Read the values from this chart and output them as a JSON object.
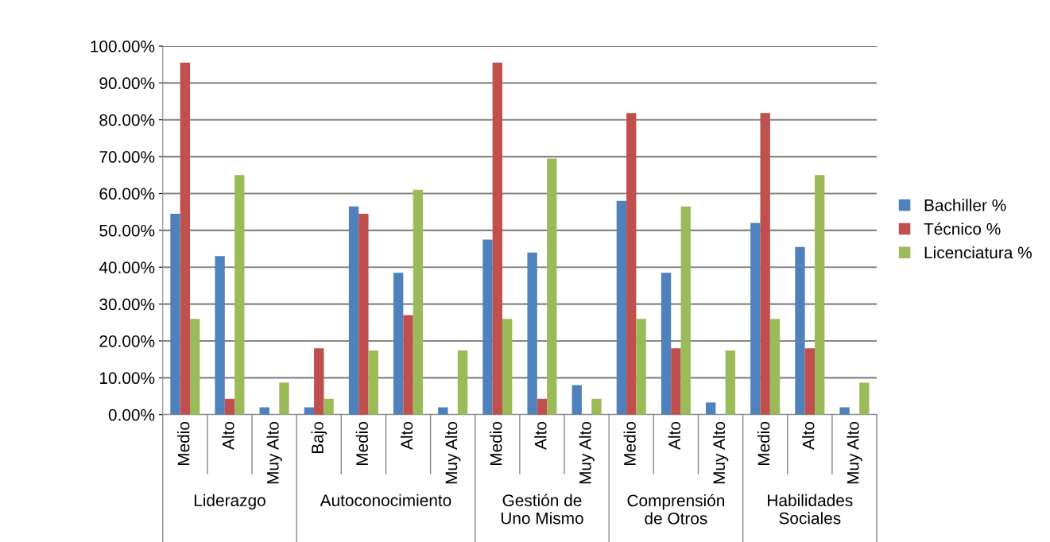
{
  "chart_data": {
    "type": "bar",
    "categories": [
      "Medio",
      "Alto",
      "Muy Alto",
      "Bajo",
      "Medio",
      "Alto",
      "Muy Alto",
      "Medio",
      "Alto",
      "Muy Alto",
      "Medio",
      "Alto",
      "Muy Alto",
      "Medio",
      "Alto",
      "Muy Alto"
    ],
    "series": [
      {
        "name": "Bachiller %",
        "color": "#4f81bd",
        "values": [
          54.5,
          43,
          2,
          2,
          56.5,
          38.5,
          2,
          47.5,
          44,
          8,
          58,
          38.5,
          3.3,
          52,
          45.5,
          2
        ]
      },
      {
        "name": "Técnico %",
        "color": "#c0504d",
        "values": [
          95.5,
          4.3,
          0,
          18,
          54.5,
          27,
          0,
          95.5,
          4.3,
          0,
          81.8,
          18,
          0,
          81.8,
          18,
          0
        ]
      },
      {
        "name": "Licenciatura %",
        "color": "#9bbb59",
        "values": [
          26,
          65,
          8.7,
          4.3,
          17.4,
          61,
          17.4,
          26,
          69.5,
          4.3,
          26,
          56.5,
          17.4,
          26,
          65,
          8.7
        ]
      }
    ],
    "annotations": [
      "Liderazgo",
      "Autoconocimiento",
      "Gestión de\nUno Mismo",
      "Comprensión\nde Otros",
      "Habilidades\nSociales"
    ],
    "ylim": [
      0,
      100
    ],
    "yticks": [
      {
        "value": 0,
        "label": "0.00%"
      },
      {
        "value": 10,
        "label": "10.00%"
      },
      {
        "value": 20,
        "label": "20.00%"
      },
      {
        "value": 30,
        "label": "30.00%"
      },
      {
        "value": 40,
        "label": "40.00%"
      },
      {
        "value": 50,
        "label": "50.00%"
      },
      {
        "value": 60,
        "label": "60.00%"
      },
      {
        "value": 70,
        "label": "70.00%"
      },
      {
        "value": 80,
        "label": "80.00%"
      },
      {
        "value": 90,
        "label": "90.00%"
      },
      {
        "value": 100,
        "label": "100.00%"
      }
    ],
    "grid": "y",
    "legend": "right"
  }
}
